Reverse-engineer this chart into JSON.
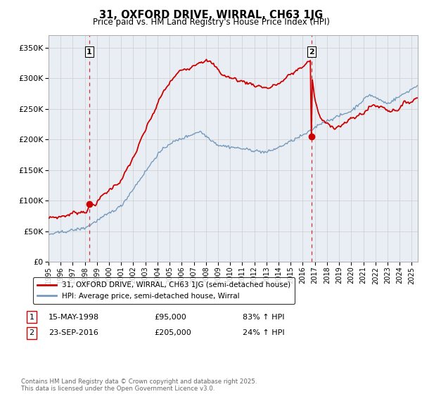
{
  "title": "31, OXFORD DRIVE, WIRRAL, CH63 1JG",
  "subtitle": "Price paid vs. HM Land Registry's House Price Index (HPI)",
  "ylim": [
    0,
    370000
  ],
  "yticks": [
    0,
    50000,
    100000,
    150000,
    200000,
    250000,
    300000,
    350000
  ],
  "sale1_x": 1998.37,
  "sale1_price": 95000,
  "sale2_x": 2016.71,
  "sale2_price": 205000,
  "line_color_property": "#cc0000",
  "line_color_hpi": "#7799bb",
  "vline_color": "#cc0000",
  "grid_color": "#cccccc",
  "background_color": "#ffffff",
  "chart_bg_color": "#e8eef4",
  "legend_label_property": "31, OXFORD DRIVE, WIRRAL, CH63 1JG (semi-detached house)",
  "legend_label_hpi": "HPI: Average price, semi-detached house, Wirral",
  "footnote": "Contains HM Land Registry data © Crown copyright and database right 2025.\nThis data is licensed under the Open Government Licence v3.0.",
  "x_start_year": 1995,
  "x_end_year": 2025
}
